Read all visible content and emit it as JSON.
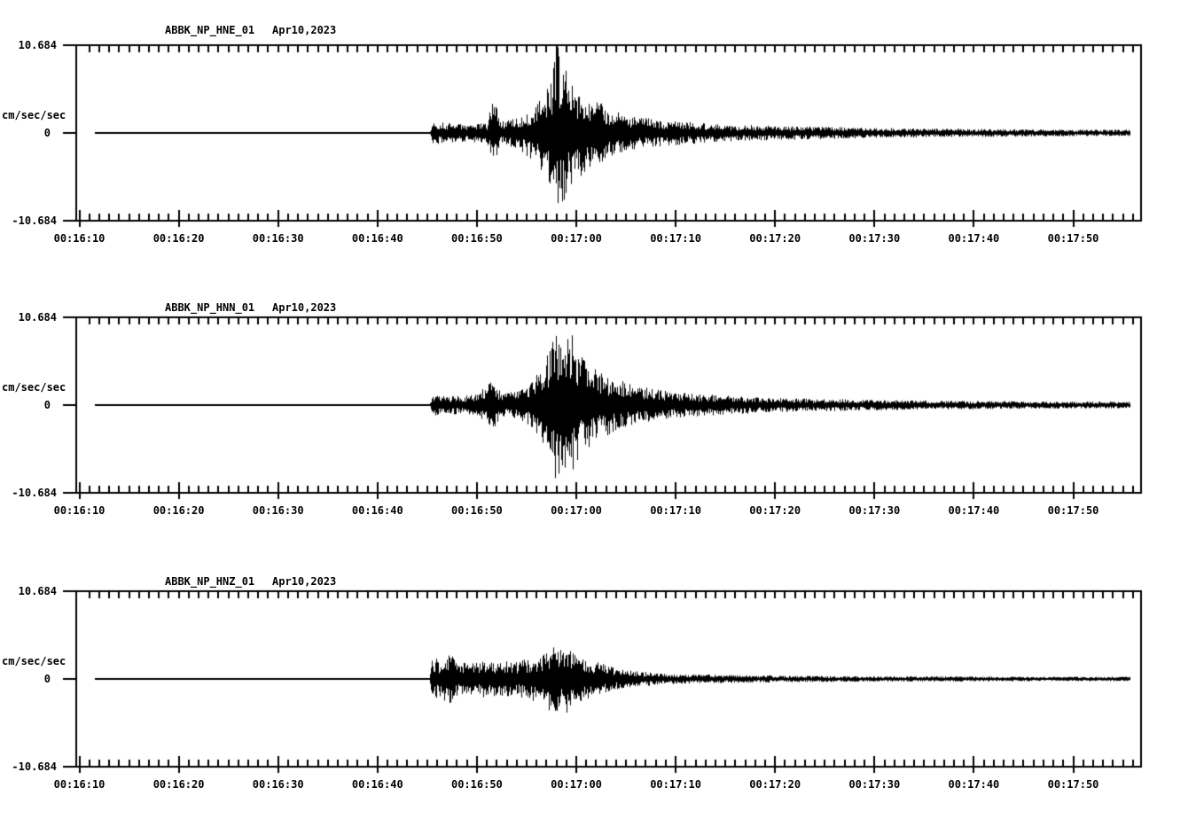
{
  "figure": {
    "background": "#ffffff",
    "ink": "#000000",
    "axis": {
      "y_max_label": "10.684",
      "y_zero_label": "0",
      "y_min_label": "-10.684",
      "y_unit": "cm/sec/sec",
      "x_tick_labels": [
        "00:16:10",
        "00:16:20",
        "00:16:30",
        "00:16:40",
        "00:16:50",
        "00:17:00",
        "00:17:10",
        "00:17:20",
        "00:17:30",
        "00:17:40",
        "00:17:50"
      ],
      "major_interval_sec": 10,
      "minor_interval_sec": 1,
      "x_start_time": "00:16:10",
      "x_end_time": "00:17:56"
    }
  },
  "chart_data": {
    "type": "line",
    "kind": "seismogram-accelerograms",
    "station": "ABBK",
    "network": "NP",
    "date": "Apr10,2023",
    "ylabel": "cm/sec/sec",
    "ylim": [
      -10.684,
      10.684
    ],
    "x_range": [
      "00:16:10",
      "00:17:56"
    ],
    "x_tick_labels": [
      "00:16:10",
      "00:16:20",
      "00:16:30",
      "00:16:40",
      "00:16:50",
      "00:17:00",
      "00:17:10",
      "00:17:20",
      "00:17:30",
      "00:17:40",
      "00:17:50"
    ],
    "event": {
      "quiet_until": "00:16:45",
      "peak_time": "00:16:58",
      "description": "flat baseline, sudden onset, strongest burst ~00:16:58, long decaying coda"
    },
    "subplots": [
      {
        "title": "ABBK_NP_HNE_01",
        "date": "Apr10,2023",
        "channel": "HNE",
        "peak_amp_cm_s2": 10.9,
        "trace_start_sec": 1.56,
        "trace_end_sec": 105.7,
        "envelope_sec_amp": [
          [
            1.56,
            0.04
          ],
          [
            35.2,
            0.04
          ],
          [
            35.6,
            1.4
          ],
          [
            38,
            1.1
          ],
          [
            41,
            1.2
          ],
          [
            41.6,
            4.8
          ],
          [
            42.3,
            1.4
          ],
          [
            44,
            1.9
          ],
          [
            46,
            3.7
          ],
          [
            47.4,
            6.4
          ],
          [
            48.0,
            10.9
          ],
          [
            48.7,
            8.3
          ],
          [
            49.6,
            5.9
          ],
          [
            51,
            4.8
          ],
          [
            53,
            3.2
          ],
          [
            55,
            2.1
          ],
          [
            58,
            1.7
          ],
          [
            62,
            1.3
          ],
          [
            66,
            1.0
          ],
          [
            70,
            0.9
          ],
          [
            75,
            0.75
          ],
          [
            80,
            0.64
          ],
          [
            85,
            0.55
          ],
          [
            90,
            0.5
          ],
          [
            95,
            0.45
          ],
          [
            100,
            0.4
          ],
          [
            105.7,
            0.4
          ]
        ]
      },
      {
        "title": "ABBK_NP_HNN_01",
        "date": "Apr10,2023",
        "channel": "HNN",
        "peak_amp_cm_s2": 9.1,
        "trace_start_sec": 1.56,
        "trace_end_sec": 105.7,
        "envelope_sec_amp": [
          [
            1.56,
            0.04
          ],
          [
            35.2,
            0.04
          ],
          [
            35.6,
            1.3
          ],
          [
            38,
            1.1
          ],
          [
            40,
            1.3
          ],
          [
            41.5,
            3.0
          ],
          [
            42.5,
            1.5
          ],
          [
            44,
            1.6
          ],
          [
            45.5,
            2.7
          ],
          [
            47,
            5.9
          ],
          [
            47.9,
            9.1
          ],
          [
            48.7,
            8.0
          ],
          [
            49.6,
            8.6
          ],
          [
            50.5,
            5.9
          ],
          [
            52,
            4.3
          ],
          [
            54,
            3.2
          ],
          [
            56,
            2.4
          ],
          [
            58,
            1.9
          ],
          [
            60,
            1.6
          ],
          [
            63,
            1.3
          ],
          [
            66,
            1.1
          ],
          [
            70,
            0.9
          ],
          [
            75,
            0.75
          ],
          [
            80,
            0.64
          ],
          [
            85,
            0.55
          ],
          [
            90,
            0.5
          ],
          [
            95,
            0.45
          ],
          [
            100,
            0.43
          ],
          [
            105.7,
            0.43
          ]
        ]
      },
      {
        "title": "ABBK_NP_HNZ_01",
        "date": "Apr10,2023",
        "channel": "HNZ",
        "peak_amp_cm_s2": 4.5,
        "trace_start_sec": 1.56,
        "trace_end_sec": 105.7,
        "envelope_sec_amp": [
          [
            1.56,
            0.04
          ],
          [
            35.2,
            0.04
          ],
          [
            35.5,
            2.9
          ],
          [
            36.3,
            2.1
          ],
          [
            37.2,
            3.4
          ],
          [
            38.2,
            1.9
          ],
          [
            40,
            2.2
          ],
          [
            42,
            2.3
          ],
          [
            44,
            2.1
          ],
          [
            45.5,
            2.6
          ],
          [
            46.6,
            3.2
          ],
          [
            47.6,
            4.5
          ],
          [
            48.3,
            3.7
          ],
          [
            48.9,
            4.3
          ],
          [
            49.8,
            3.1
          ],
          [
            51,
            2.6
          ],
          [
            52.5,
            1.9
          ],
          [
            54,
            1.3
          ],
          [
            56,
            0.95
          ],
          [
            58,
            0.75
          ],
          [
            60,
            0.6
          ],
          [
            65,
            0.5
          ],
          [
            70,
            0.42
          ],
          [
            75,
            0.37
          ],
          [
            80,
            0.32
          ],
          [
            85,
            0.32
          ],
          [
            90,
            0.3
          ],
          [
            95,
            0.27
          ],
          [
            100,
            0.27
          ],
          [
            105.7,
            0.27
          ]
        ]
      }
    ]
  }
}
